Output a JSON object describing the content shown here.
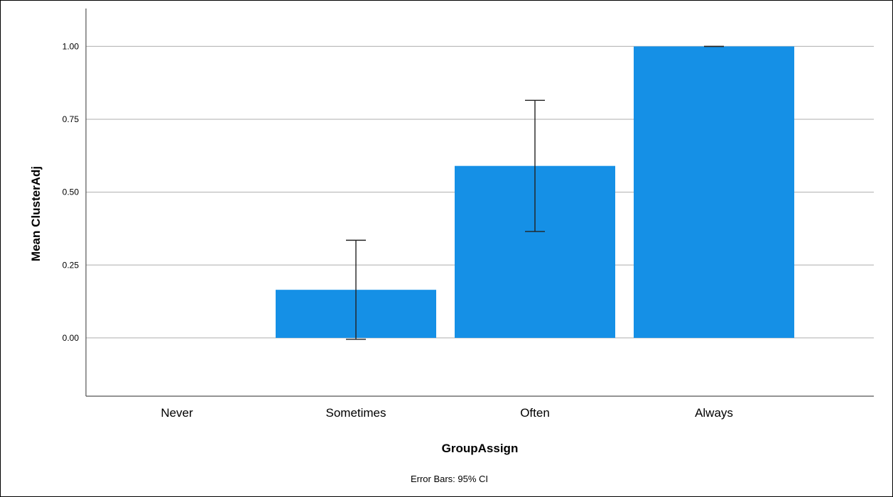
{
  "chart_data": {
    "type": "bar",
    "categories": [
      "Never",
      "Sometimes",
      "Often",
      "Always"
    ],
    "values": [
      0,
      0.165,
      0.59,
      1.0
    ],
    "error_bars": [
      null,
      {
        "low": -0.005,
        "high": 0.335
      },
      {
        "low": 0.365,
        "high": 0.815
      },
      {
        "low": 1.0,
        "high": 1.0
      }
    ],
    "xlabel": "GroupAssign",
    "ylabel": "Mean ClusterAdj",
    "yticks": [
      0,
      0.25,
      0.5,
      0.75,
      1.0
    ],
    "ytick_labels": [
      "0.00",
      "0.25",
      "0.50",
      "0.75",
      "1.00"
    ],
    "ylim": [
      -0.2,
      1.13
    ],
    "grid": true,
    "note": "Error Bars: 95% CI",
    "bar_color": "#1590e6",
    "grid_color": "#bdbdbd",
    "axis_color": "#555555"
  }
}
